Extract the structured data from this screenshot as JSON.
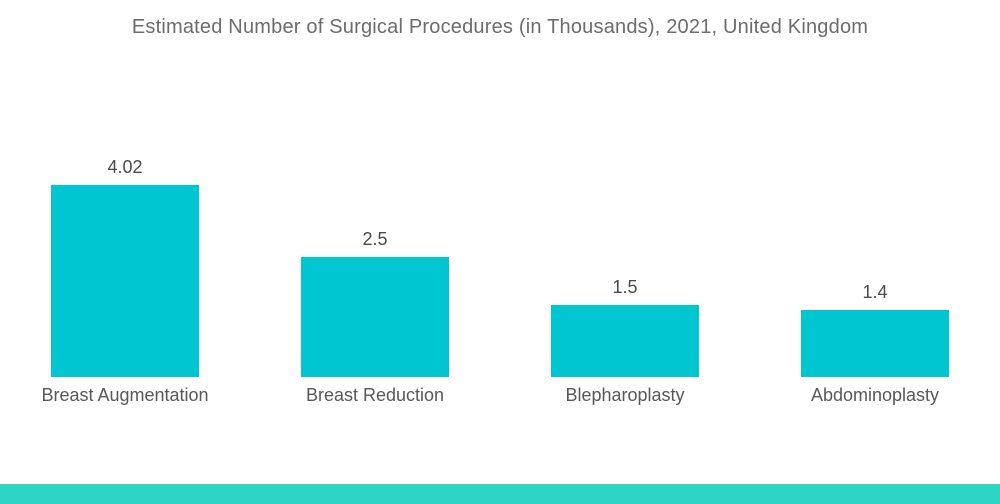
{
  "chart_data": {
    "type": "bar",
    "title": "Estimated Number of Surgical Procedures (in Thousands), 2021, United Kingdom",
    "categories": [
      "Breast Augmentation",
      "Breast Reduction",
      "Blepharoplasty",
      "Abdominoplasty"
    ],
    "values": [
      4.02,
      2.5,
      1.5,
      1.4
    ],
    "value_labels": [
      "4.02",
      "2.5",
      "1.5",
      "1.4"
    ],
    "xlabel": "",
    "ylabel": "",
    "grid": false,
    "legend": false,
    "axes_shown": false,
    "bar_color": "#00C6D1",
    "value_label_color": "#4b4b4b",
    "category_label_color": "#585858",
    "title_color": "#6c6c6c"
  },
  "footer": {
    "band_color": "#2ED5C6"
  }
}
